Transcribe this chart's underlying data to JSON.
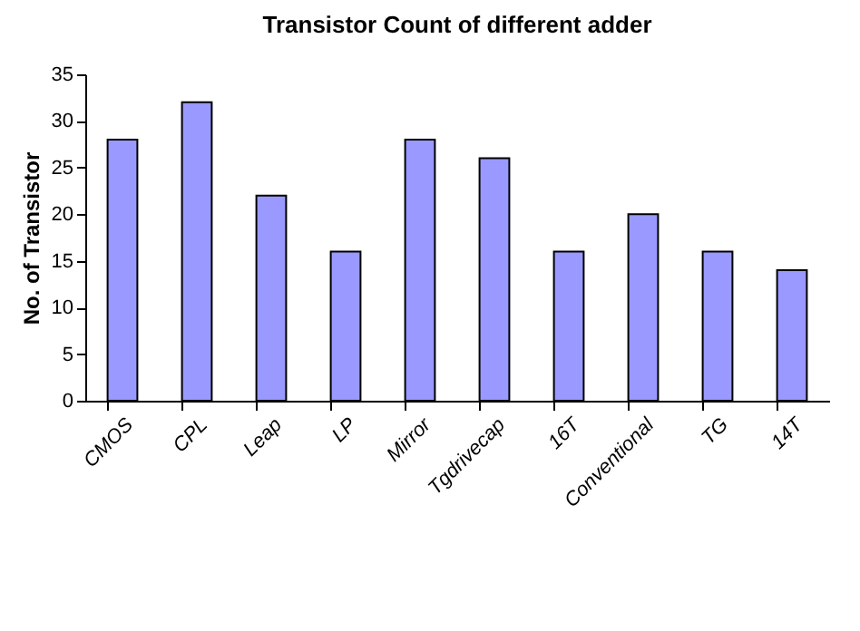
{
  "chart_data": {
    "type": "bar",
    "title": "Transistor Count of different adder",
    "ylabel": "No. of Transistor",
    "categories": [
      "CMOS",
      "CPL",
      "Leap",
      "LP",
      "Mirror",
      "Tgdrivecap",
      "16T",
      "Conventional",
      "TG",
      "14T"
    ],
    "values": [
      28,
      32,
      22,
      16,
      28,
      26,
      16,
      20,
      16,
      14
    ],
    "color": "#9999ff",
    "ylim": [
      0,
      35
    ],
    "yticks": [
      0,
      5,
      10,
      15,
      20,
      25,
      30,
      35
    ],
    "grid": false,
    "legend": false
  }
}
